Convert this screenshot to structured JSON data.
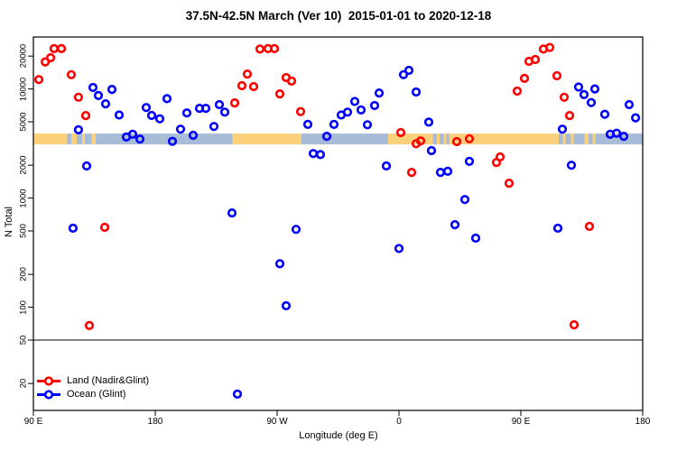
{
  "title": "37.5N-42.5N March (Ver 10)  2015-01-01 to 2020-12-18",
  "axes": {
    "x": {
      "label": "Longitude (deg E)",
      "ticks": [
        {
          "lon": 90,
          "label": "90 E"
        },
        {
          "lon": 180,
          "label": "180"
        },
        {
          "lon": 270,
          "label": "90 W"
        },
        {
          "lon": 360,
          "label": "0"
        },
        {
          "lon": 450,
          "label": "90 E"
        },
        {
          "lon": 540,
          "label": "180"
        }
      ]
    },
    "y": {
      "label": "N Total",
      "scale": "log",
      "ticks": [
        "20000",
        "10000",
        "5000",
        "2000",
        "1000",
        "500",
        "200",
        "100",
        "50",
        "20"
      ]
    }
  },
  "legend": {
    "items": [
      {
        "label": "Land (Nadir&Glint)",
        "color": "#FF0000"
      },
      {
        "label": "Ocean (Glint)",
        "color": "#0000FF"
      }
    ]
  },
  "colors": {
    "land_point": "#FF0000",
    "ocean_point": "#0000FF",
    "band_land": "#FBD17C",
    "band_ocean": "#A8BCD8",
    "axis": "#000000",
    "hline": "#000000"
  },
  "band": {
    "description": "land/ocean world-map strip at the sample latitude",
    "n_range": [
      3100,
      3900
    ],
    "segments": [
      {
        "from": 90,
        "to": 115,
        "type": "land"
      },
      {
        "from": 115,
        "to": 118,
        "type": "ocean"
      },
      {
        "from": 118,
        "to": 122,
        "type": "land"
      },
      {
        "from": 122,
        "to": 126,
        "type": "ocean"
      },
      {
        "from": 126,
        "to": 128,
        "type": "land"
      },
      {
        "from": 128,
        "to": 133,
        "type": "ocean"
      },
      {
        "from": 133,
        "to": 136,
        "type": "land"
      },
      {
        "from": 136,
        "to": 237,
        "type": "ocean"
      },
      {
        "from": 237,
        "to": 288,
        "type": "land"
      },
      {
        "from": 288,
        "to": 352,
        "type": "ocean"
      },
      {
        "from": 352,
        "to": 385,
        "type": "land"
      },
      {
        "from": 385,
        "to": 388,
        "type": "ocean"
      },
      {
        "from": 388,
        "to": 390,
        "type": "land"
      },
      {
        "from": 390,
        "to": 393,
        "type": "ocean"
      },
      {
        "from": 393,
        "to": 395,
        "type": "land"
      },
      {
        "from": 395,
        "to": 397,
        "type": "ocean"
      },
      {
        "from": 397,
        "to": 478,
        "type": "land"
      },
      {
        "from": 478,
        "to": 481,
        "type": "ocean"
      },
      {
        "from": 481,
        "to": 483,
        "type": "land"
      },
      {
        "from": 483,
        "to": 487,
        "type": "ocean"
      },
      {
        "from": 487,
        "to": 489,
        "type": "land"
      },
      {
        "from": 489,
        "to": 497,
        "type": "ocean"
      },
      {
        "from": 497,
        "to": 500,
        "type": "land"
      },
      {
        "from": 500,
        "to": 503,
        "type": "ocean"
      },
      {
        "from": 503,
        "to": 505,
        "type": "land"
      },
      {
        "from": 505,
        "to": 540,
        "type": "ocean"
      }
    ]
  },
  "chart_data": {
    "type": "scatter",
    "title": "37.5N-42.5N March (Ver 10)  2015-01-01 to 2020-12-18",
    "xlabel": "Longitude (deg E)",
    "ylabel": "N Total",
    "x_axis_note": "axis starts at 90E and runs eastward through 180, 90W, 0, 90E to 180 (lon stored as continuous 90..540 deg E)",
    "xlim": [
      90,
      540
    ],
    "ylim": [
      11,
      30000
    ],
    "y_scale": "log",
    "grid": false,
    "hline_n": 50,
    "legend_position": "bottom-left",
    "series": [
      {
        "name": "Land (Nadir&Glint)",
        "color": "#FF0000",
        "points": [
          [
            94,
            12200
          ],
          [
            98.7,
            17700
          ],
          [
            102.7,
            19300
          ],
          [
            105.3,
            23400
          ],
          [
            110.7,
            23400
          ],
          [
            118,
            13500
          ],
          [
            123.3,
            8400
          ],
          [
            128.7,
            5700
          ],
          [
            131.3,
            68
          ],
          [
            142.7,
            540
          ],
          [
            238.7,
            7450
          ],
          [
            244,
            10700
          ],
          [
            248,
            13700
          ],
          [
            252.7,
            10500
          ],
          [
            257.3,
            23200
          ],
          [
            263.3,
            23400
          ],
          [
            268,
            23400
          ],
          [
            272,
            9000
          ],
          [
            276.7,
            12700
          ],
          [
            280.7,
            11800
          ],
          [
            287.3,
            6200
          ],
          [
            361.3,
            3980
          ],
          [
            369.3,
            1720
          ],
          [
            372.7,
            3150
          ],
          [
            376,
            3340
          ],
          [
            402.7,
            3290
          ],
          [
            412,
            3500
          ],
          [
            432,
            2120
          ],
          [
            434.7,
            2380
          ],
          [
            441.3,
            1370
          ],
          [
            447.3,
            9560
          ],
          [
            452.7,
            12500
          ],
          [
            456,
            17900
          ],
          [
            460.7,
            18600
          ],
          [
            466.7,
            23200
          ],
          [
            471.3,
            24000
          ],
          [
            476.7,
            13200
          ],
          [
            482,
            8400
          ],
          [
            486,
            5700
          ],
          [
            489.3,
            69
          ],
          [
            500.7,
            550
          ]
        ]
      },
      {
        "name": "Ocean (Glint)",
        "color": "#0000FF",
        "points": [
          [
            119.3,
            530
          ],
          [
            123.3,
            4220
          ],
          [
            129.3,
            1970
          ],
          [
            134,
            10300
          ],
          [
            138,
            8700
          ],
          [
            143.3,
            7300
          ],
          [
            148,
            9900
          ],
          [
            153.3,
            5770
          ],
          [
            158.7,
            3630
          ],
          [
            163.3,
            3840
          ],
          [
            168.7,
            3470
          ],
          [
            173.3,
            6760
          ],
          [
            177.3,
            5710
          ],
          [
            183.3,
            5330
          ],
          [
            188.7,
            8140
          ],
          [
            192.7,
            3310
          ],
          [
            198.7,
            4280
          ],
          [
            203.3,
            6030
          ],
          [
            208,
            3760
          ],
          [
            212.7,
            6640
          ],
          [
            217.3,
            6640
          ],
          [
            223.3,
            4530
          ],
          [
            227.3,
            7180
          ],
          [
            231.3,
            6130
          ],
          [
            236.7,
            730
          ],
          [
            240.7,
            16
          ],
          [
            272,
            250
          ],
          [
            276.7,
            103
          ],
          [
            284,
            517
          ],
          [
            292.7,
            4730
          ],
          [
            296.7,
            2560
          ],
          [
            302,
            2500
          ],
          [
            306.7,
            3680
          ],
          [
            312,
            4730
          ],
          [
            317.3,
            5770
          ],
          [
            322,
            6130
          ],
          [
            327.3,
            7680
          ],
          [
            332,
            6420
          ],
          [
            336.7,
            4700
          ],
          [
            342,
            7050
          ],
          [
            345.3,
            9180
          ],
          [
            350.7,
            1970
          ],
          [
            360,
            345
          ],
          [
            363.3,
            13500
          ],
          [
            367.3,
            14800
          ],
          [
            372.7,
            9370
          ],
          [
            382,
            4960
          ],
          [
            384,
            2720
          ],
          [
            390.7,
            1720
          ],
          [
            396,
            1760
          ],
          [
            401.3,
            570
          ],
          [
            408.7,
            970
          ],
          [
            412,
            2170
          ],
          [
            416.7,
            430
          ],
          [
            477.3,
            530
          ],
          [
            480.7,
            4280
          ],
          [
            487.3,
            2000
          ],
          [
            492.7,
            10400
          ],
          [
            496.7,
            8870
          ],
          [
            502,
            7500
          ],
          [
            504.7,
            10000
          ],
          [
            512,
            5860
          ],
          [
            516,
            3840
          ],
          [
            520.7,
            3930
          ],
          [
            526,
            3680
          ],
          [
            530,
            7180
          ],
          [
            534.7,
            5440
          ]
        ]
      }
    ]
  }
}
